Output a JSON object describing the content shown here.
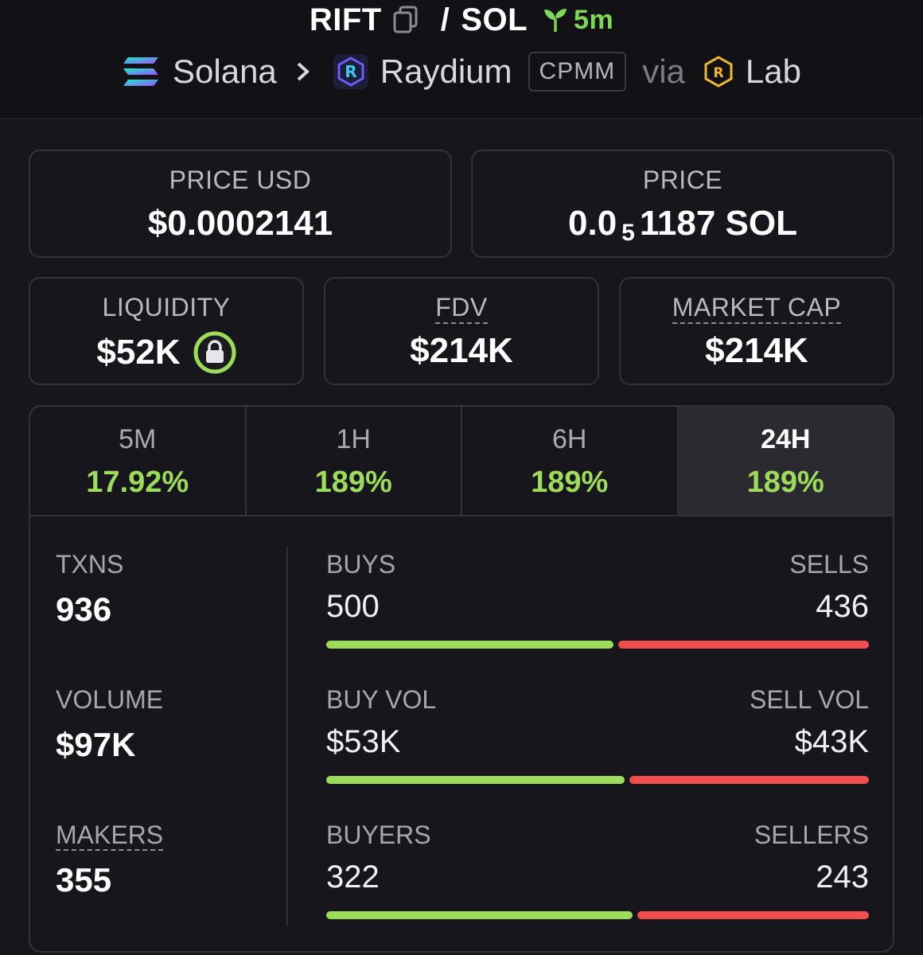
{
  "header": {
    "token": "RIFT",
    "separator": "/",
    "quote": "SOL",
    "age": "5m",
    "chain": "Solana",
    "dex": "Raydium",
    "pool_type": "CPMM",
    "via": "via",
    "launchpad": "Lab"
  },
  "stats": {
    "price_usd_label": "PRICE USD",
    "price_usd": "$0.0002141",
    "price_label": "PRICE",
    "price_lead": "0.0",
    "price_sub": "5",
    "price_tail": "1187 SOL",
    "liquidity_label": "LIQUIDITY",
    "liquidity": "$52K",
    "fdv_label": "FDV",
    "fdv": "$214K",
    "mcap_label": "MARKET CAP",
    "mcap": "$214K"
  },
  "timeframes": [
    {
      "label": "5M",
      "change": "17.92%"
    },
    {
      "label": "1H",
      "change": "189%"
    },
    {
      "label": "6H",
      "change": "189%"
    },
    {
      "label": "24H",
      "change": "189%"
    }
  ],
  "metrics": {
    "txns_label": "TXNS",
    "txns": "936",
    "volume_label": "VOLUME",
    "volume": "$97K",
    "makers_label": "MAKERS",
    "makers": "355"
  },
  "splits": {
    "buys_label": "BUYS",
    "buys": "500",
    "sells_label": "SELLS",
    "sells": "436",
    "buy_vol_label": "BUY VOL",
    "buy_vol": "$53K",
    "sell_vol_label": "SELL VOL",
    "sell_vol": "$43K",
    "buyers_label": "BUYERS",
    "buyers": "322",
    "sellers_label": "SELLERS",
    "sellers": "243",
    "buys_ratio": 0.534,
    "buy_vol_ratio": 0.555,
    "buyers_ratio": 0.57
  },
  "colors": {
    "positive": "#9ddc5b",
    "negative": "#f24e4e",
    "background": "#17161c"
  },
  "icons": [
    "copy-icon",
    "sprout-icon",
    "solana-logo",
    "chevron-right-icon",
    "raydium-logo",
    "lab-logo",
    "lock-icon"
  ]
}
